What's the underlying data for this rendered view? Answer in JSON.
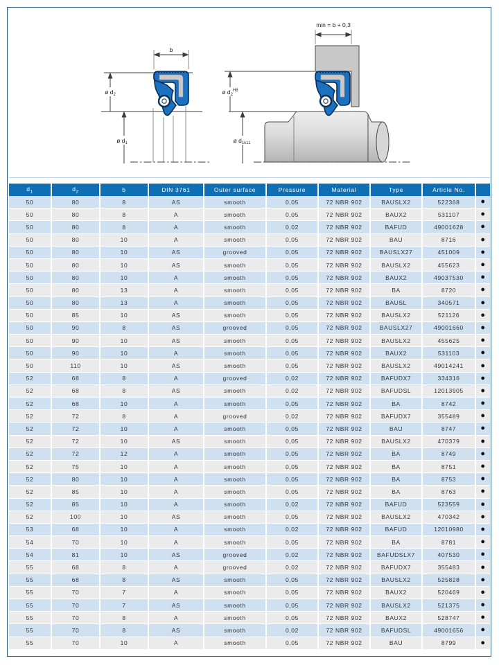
{
  "colors": {
    "header_blue": "#0f6fb4",
    "row_blue": "#cfe0f0",
    "row_gray": "#ebebeb",
    "border_blue": "#2e5f80",
    "seal_blue": "#1b70bf"
  },
  "diagram": {
    "dim_b": "b",
    "min_width": "min = b + 0,3",
    "d2": {
      "base": "ø d",
      "sub": "2"
    },
    "d1": {
      "base": "ø d",
      "sub": "1"
    },
    "d2_tol": {
      "base": "ø d",
      "sub": "2",
      "tol": "H8"
    },
    "d1_tol": {
      "base": "ø d",
      "sub": "1",
      "tol": "k11"
    }
  },
  "table": {
    "headers": [
      {
        "base": "d",
        "sub": "1"
      },
      {
        "base": "d",
        "sub": "2"
      },
      "b",
      "DIN 3761",
      "Outer surface",
      "Pressure",
      "Material",
      "Type",
      "Article No.",
      ""
    ],
    "availability_marker": "●",
    "rows": [
      [
        "50",
        "80",
        "8",
        "AS",
        "smooth",
        "0,05",
        "72 NBR 902",
        "BAUSLX2",
        "522368"
      ],
      [
        "50",
        "80",
        "8",
        "A",
        "smooth",
        "0,05",
        "72 NBR 902",
        "BAUX2",
        "531107"
      ],
      [
        "50",
        "80",
        "8",
        "A",
        "smooth",
        "0,02",
        "72 NBR 902",
        "BAFUD",
        "49001628"
      ],
      [
        "50",
        "80",
        "10",
        "A",
        "smooth",
        "0,05",
        "72 NBR 902",
        "BAU",
        "8716"
      ],
      [
        "50",
        "80",
        "10",
        "AS",
        "grooved",
        "0,05",
        "72 NBR 902",
        "BAUSLX27",
        "451009"
      ],
      [
        "50",
        "80",
        "10",
        "AS",
        "smooth",
        "0,05",
        "72 NBR 902",
        "BAUSLX2",
        "455623"
      ],
      [
        "50",
        "80",
        "10",
        "A",
        "smooth",
        "0,05",
        "72 NBR 902",
        "BAUX2",
        "49037530"
      ],
      [
        "50",
        "80",
        "13",
        "A",
        "smooth",
        "0,05",
        "72 NBR 902",
        "BA",
        "8720"
      ],
      [
        "50",
        "80",
        "13",
        "A",
        "smooth",
        "0,05",
        "72 NBR 902",
        "BAUSL",
        "340571"
      ],
      [
        "50",
        "85",
        "10",
        "AS",
        "smooth",
        "0,05",
        "72 NBR 902",
        "BAUSLX2",
        "521126"
      ],
      [
        "50",
        "90",
        "8",
        "AS",
        "grooved",
        "0,05",
        "72 NBR 902",
        "BAUSLX27",
        "49001660"
      ],
      [
        "50",
        "90",
        "10",
        "AS",
        "smooth",
        "0,05",
        "72 NBR 902",
        "BAUSLX2",
        "455625"
      ],
      [
        "50",
        "90",
        "10",
        "A",
        "smooth",
        "0,05",
        "72 NBR 902",
        "BAUX2",
        "531103"
      ],
      [
        "50",
        "110",
        "10",
        "AS",
        "smooth",
        "0,05",
        "72 NBR 902",
        "BAUSLX2",
        "49014241"
      ],
      [
        "52",
        "68",
        "8",
        "A",
        "grooved",
        "0,02",
        "72 NBR 902",
        "BAFUDX7",
        "334316"
      ],
      [
        "52",
        "68",
        "8",
        "AS",
        "smooth",
        "0,02",
        "72 NBR 902",
        "BAFUDSL",
        "12013905"
      ],
      [
        "52",
        "68",
        "10",
        "A",
        "smooth",
        "0,05",
        "72 NBR 902",
        "BA",
        "8742"
      ],
      [
        "52",
        "72",
        "8",
        "A",
        "grooved",
        "0,02",
        "72 NBR 902",
        "BAFUDX7",
        "355489"
      ],
      [
        "52",
        "72",
        "10",
        "A",
        "smooth",
        "0,05",
        "72 NBR 902",
        "BAU",
        "8747"
      ],
      [
        "52",
        "72",
        "10",
        "AS",
        "smooth",
        "0,05",
        "72 NBR 902",
        "BAUSLX2",
        "470379"
      ],
      [
        "52",
        "72",
        "12",
        "A",
        "smooth",
        "0,05",
        "72 NBR 902",
        "BA",
        "8749"
      ],
      [
        "52",
        "75",
        "10",
        "A",
        "smooth",
        "0,05",
        "72 NBR 902",
        "BA",
        "8751"
      ],
      [
        "52",
        "80",
        "10",
        "A",
        "smooth",
        "0,05",
        "72 NBR 902",
        "BA",
        "8753"
      ],
      [
        "52",
        "85",
        "10",
        "A",
        "smooth",
        "0,05",
        "72 NBR 902",
        "BA",
        "8763"
      ],
      [
        "52",
        "85",
        "10",
        "A",
        "smooth",
        "0,02",
        "72 NBR 902",
        "BAFUD",
        "523559"
      ],
      [
        "52",
        "100",
        "10",
        "AS",
        "smooth",
        "0,05",
        "72 NBR 902",
        "BAUSLX2",
        "470342"
      ],
      [
        "53",
        "68",
        "10",
        "A",
        "smooth",
        "0,02",
        "72 NBR 902",
        "BAFUD",
        "12010980"
      ],
      [
        "54",
        "70",
        "10",
        "A",
        "smooth",
        "0,05",
        "72 NBR 902",
        "BA",
        "8781"
      ],
      [
        "54",
        "81",
        "10",
        "AS",
        "grooved",
        "0,02",
        "72 NBR 902",
        "BAFUDSLX7",
        "407530"
      ],
      [
        "55",
        "68",
        "8",
        "A",
        "grooved",
        "0,02",
        "72 NBR 902",
        "BAFUDX7",
        "355483"
      ],
      [
        "55",
        "68",
        "8",
        "AS",
        "smooth",
        "0,05",
        "72 NBR 902",
        "BAUSLX2",
        "525828"
      ],
      [
        "55",
        "70",
        "7",
        "A",
        "smooth",
        "0,05",
        "72 NBR 902",
        "BAUX2",
        "520469"
      ],
      [
        "55",
        "70",
        "7",
        "AS",
        "smooth",
        "0,05",
        "72 NBR 902",
        "BAUSLX2",
        "521375"
      ],
      [
        "55",
        "70",
        "8",
        "A",
        "smooth",
        "0,05",
        "72 NBR 902",
        "BAUX2",
        "528747"
      ],
      [
        "55",
        "70",
        "8",
        "AS",
        "smooth",
        "0,02",
        "72 NBR 902",
        "BAFUDSL",
        "49001656"
      ],
      [
        "55",
        "70",
        "10",
        "A",
        "smooth",
        "0,05",
        "72 NBR 902",
        "BAU",
        "8799"
      ]
    ]
  }
}
